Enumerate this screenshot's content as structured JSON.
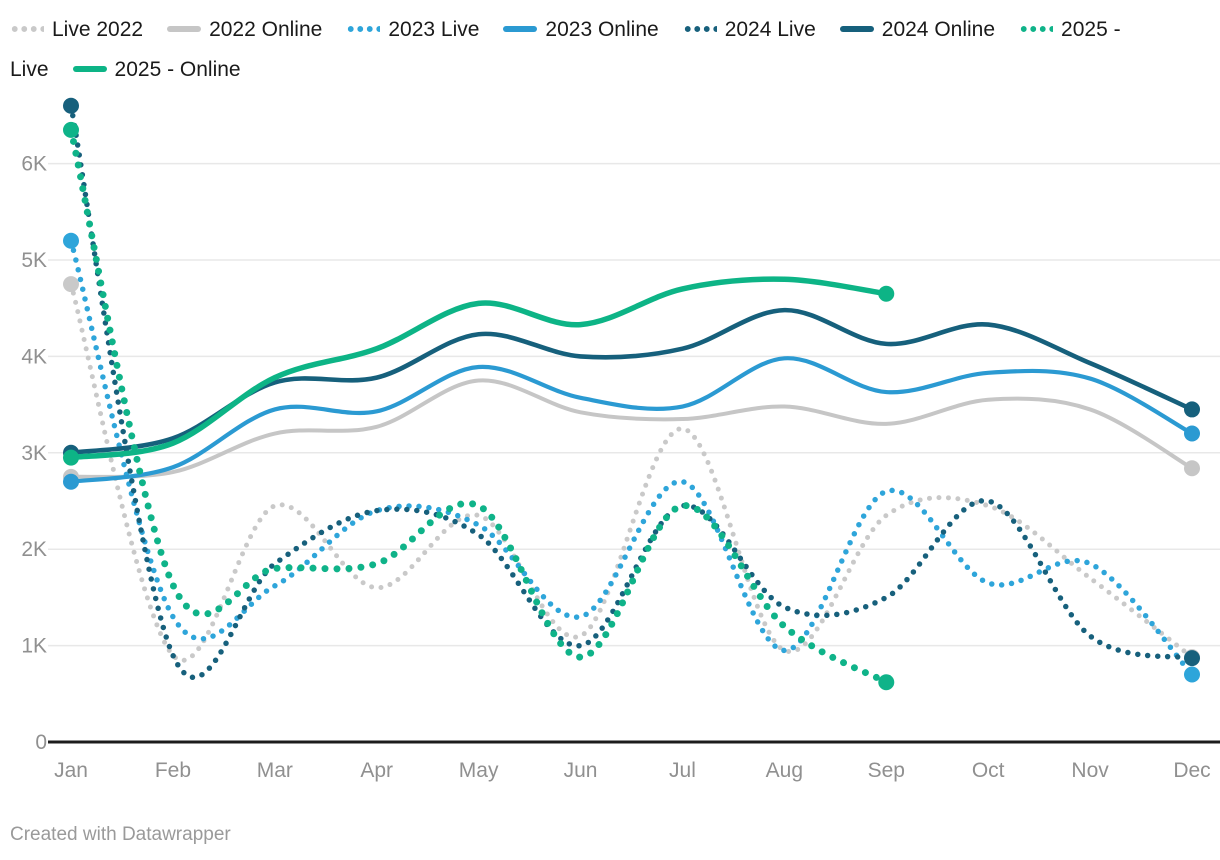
{
  "footer": {
    "credit": "Created with Datawrapper"
  },
  "chart_data": {
    "type": "line",
    "title": "",
    "xlabel": "",
    "ylabel": "",
    "x": [
      "Jan",
      "Feb",
      "Mar",
      "Apr",
      "May",
      "Jun",
      "Jul",
      "Aug",
      "Sep",
      "Oct",
      "Nov",
      "Dec"
    ],
    "yticks": [
      "0",
      "1K",
      "2K",
      "3K",
      "4K",
      "5K",
      "6K"
    ],
    "ylim": [
      0,
      7000
    ],
    "grid": true,
    "legend_position": "top",
    "series": [
      {
        "name": "Live 2022",
        "color": "#c9c9c9",
        "dashed": true,
        "values": [
          4750,
          900,
          2450,
          1600,
          2350,
          1100,
          3250,
          950,
          2350,
          2450,
          1700,
          880
        ]
      },
      {
        "name": "2022 Online",
        "color": "#c6c6c6",
        "dashed": false,
        "values": [
          2750,
          2800,
          3200,
          3270,
          3750,
          3420,
          3350,
          3480,
          3300,
          3550,
          3450,
          2840
        ]
      },
      {
        "name": "2023 Live",
        "color": "#2ea5da",
        "dashed": true,
        "values": [
          5200,
          1300,
          1620,
          2400,
          2250,
          1300,
          2700,
          950,
          2600,
          1650,
          1850,
          700
        ]
      },
      {
        "name": "2023 Online",
        "color": "#2b9ad2",
        "dashed": false,
        "values": [
          2700,
          2850,
          3450,
          3430,
          3890,
          3570,
          3480,
          3980,
          3630,
          3830,
          3770,
          3200
        ]
      },
      {
        "name": "2024 Live",
        "color": "#17607c",
        "dashed": true,
        "values": [
          6600,
          900,
          1850,
          2400,
          2150,
          1000,
          2450,
          1400,
          1500,
          2500,
          1100,
          870
        ]
      },
      {
        "name": "2024 Online",
        "color": "#16607c",
        "dashed": false,
        "values": [
          3000,
          3150,
          3730,
          3780,
          4230,
          4000,
          4080,
          4480,
          4130,
          4330,
          3930,
          3450
        ]
      },
      {
        "name": "2025 - Live",
        "color": "#0fb389",
        "dashed": true,
        "values": [
          6350,
          1630,
          1800,
          1850,
          2450,
          880,
          2450,
          1200,
          620,
          null,
          null,
          null
        ]
      },
      {
        "name": "2025 - Online",
        "color": "#0db486",
        "dashed": false,
        "values": [
          2950,
          3100,
          3780,
          4080,
          4550,
          4330,
          4700,
          4800,
          4650,
          null,
          null,
          null
        ]
      }
    ]
  }
}
